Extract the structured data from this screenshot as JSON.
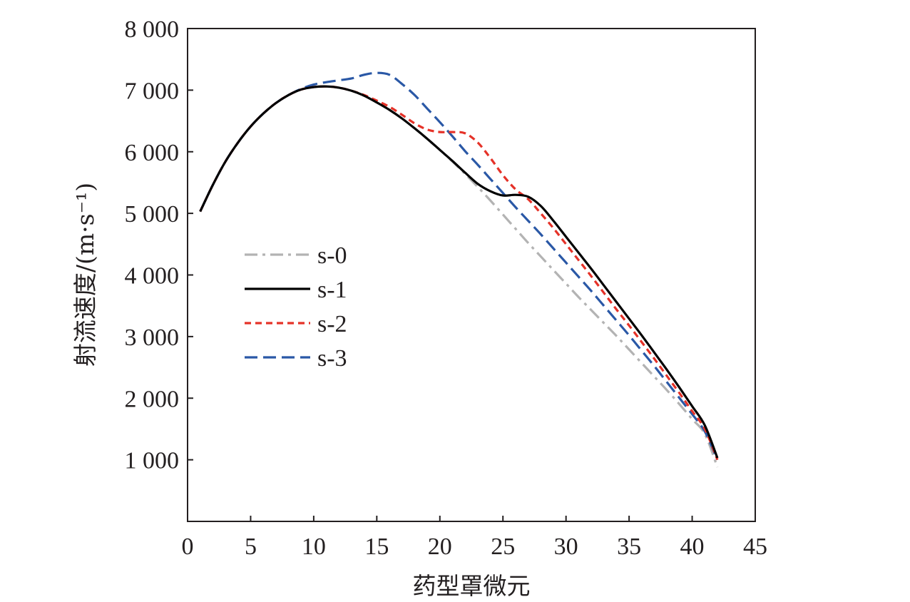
{
  "chart_data": {
    "type": "line",
    "xlabel": "药型罩微元",
    "ylabel": "射流速度/(m·s⁻¹)",
    "xlim": [
      0,
      45
    ],
    "ylim": [
      0,
      8000
    ],
    "xticks": [
      {
        "value": 0,
        "label": "0"
      },
      {
        "value": 5,
        "label": "5"
      },
      {
        "value": 10,
        "label": "10"
      },
      {
        "value": 15,
        "label": "15"
      },
      {
        "value": 20,
        "label": "20"
      },
      {
        "value": 25,
        "label": "25"
      },
      {
        "value": 30,
        "label": "30"
      },
      {
        "value": 35,
        "label": "35"
      },
      {
        "value": 40,
        "label": "40"
      },
      {
        "value": 45,
        "label": "45"
      }
    ],
    "yticks": [
      {
        "value": 1000,
        "label": "1 000"
      },
      {
        "value": 2000,
        "label": "2 000"
      },
      {
        "value": 3000,
        "label": "3 000"
      },
      {
        "value": 4000,
        "label": "4 000"
      },
      {
        "value": 5000,
        "label": "5 000"
      },
      {
        "value": 6000,
        "label": "6 000"
      },
      {
        "value": 7000,
        "label": "7 000"
      },
      {
        "value": 8000,
        "label": "8 000"
      }
    ],
    "grid": false,
    "legend_position": "center-left",
    "series": [
      {
        "name": "s-0",
        "color": "#b3b3b3",
        "dash": "dash-dot",
        "x": [
          1,
          2,
          3,
          4,
          5,
          6,
          7,
          8,
          9,
          10,
          11,
          12,
          13,
          14,
          15,
          16,
          17,
          18,
          19,
          20,
          21,
          22,
          23,
          24,
          25,
          26,
          27,
          28,
          29,
          30,
          31,
          32,
          33,
          34,
          35,
          36,
          37,
          38,
          39,
          40,
          41,
          42
        ],
        "y": [
          5030,
          5460,
          5840,
          6150,
          6410,
          6620,
          6790,
          6920,
          7010,
          7050,
          7060,
          7040,
          6990,
          6910,
          6800,
          6680,
          6540,
          6380,
          6210,
          6030,
          5840,
          5640,
          5430,
          5210,
          4980,
          4750,
          4520,
          4300,
          4080,
          3860,
          3640,
          3430,
          3220,
          3010,
          2790,
          2570,
          2350,
          2130,
          1900,
          1660,
          1420,
          880
        ]
      },
      {
        "name": "s-1",
        "color": "#000000",
        "dash": "solid",
        "x": [
          1,
          2,
          3,
          4,
          5,
          6,
          7,
          8,
          9,
          10,
          11,
          12,
          13,
          14,
          15,
          16,
          17,
          18,
          19,
          20,
          21,
          22,
          23,
          24,
          25,
          26,
          27,
          28,
          29,
          30,
          31,
          32,
          33,
          34,
          35,
          36,
          37,
          38,
          39,
          40,
          41,
          42
        ],
        "y": [
          5030,
          5460,
          5840,
          6150,
          6410,
          6620,
          6790,
          6920,
          7010,
          7050,
          7060,
          7040,
          6990,
          6910,
          6800,
          6680,
          6540,
          6380,
          6210,
          6030,
          5850,
          5660,
          5480,
          5360,
          5290,
          5300,
          5270,
          5120,
          4880,
          4620,
          4360,
          4100,
          3830,
          3560,
          3290,
          3020,
          2740,
          2460,
          2170,
          1870,
          1560,
          1030
        ]
      },
      {
        "name": "s-2",
        "color": "#e53228",
        "dash": "short-dash",
        "x": [
          1,
          2,
          3,
          4,
          5,
          6,
          7,
          8,
          9,
          10,
          11,
          12,
          13,
          14,
          15,
          16,
          17,
          18,
          19,
          20,
          21,
          22,
          23,
          24,
          25,
          26,
          27,
          28,
          29,
          30,
          31,
          32,
          33,
          34,
          35,
          36,
          37,
          38,
          39,
          40,
          41,
          42
        ],
        "y": [
          5030,
          5460,
          5840,
          6150,
          6410,
          6620,
          6790,
          6920,
          7010,
          7050,
          7060,
          7040,
          6990,
          6920,
          6830,
          6730,
          6600,
          6460,
          6360,
          6320,
          6320,
          6300,
          6150,
          5900,
          5620,
          5390,
          5230,
          5000,
          4760,
          4500,
          4240,
          3980,
          3710,
          3440,
          3180,
          2910,
          2640,
          2360,
          2080,
          1790,
          1500,
          1000
        ]
      },
      {
        "name": "s-3",
        "color": "#2a58a6",
        "dash": "long-dash",
        "x": [
          1,
          2,
          3,
          4,
          5,
          6,
          7,
          8,
          9,
          10,
          11,
          12,
          13,
          14,
          15,
          16,
          17,
          18,
          19,
          20,
          21,
          22,
          23,
          24,
          25,
          26,
          27,
          28,
          29,
          30,
          31,
          32,
          33,
          34,
          35,
          36,
          37,
          38,
          39,
          40,
          41,
          42
        ],
        "y": [
          5030,
          5460,
          5840,
          6150,
          6410,
          6620,
          6790,
          6920,
          7020,
          7090,
          7130,
          7160,
          7190,
          7250,
          7280,
          7250,
          7100,
          6920,
          6700,
          6480,
          6250,
          6010,
          5790,
          5560,
          5330,
          5100,
          4880,
          4660,
          4430,
          4200,
          3970,
          3740,
          3500,
          3260,
          3020,
          2770,
          2520,
          2260,
          2000,
          1740,
          1460,
          1000
        ]
      }
    ]
  }
}
